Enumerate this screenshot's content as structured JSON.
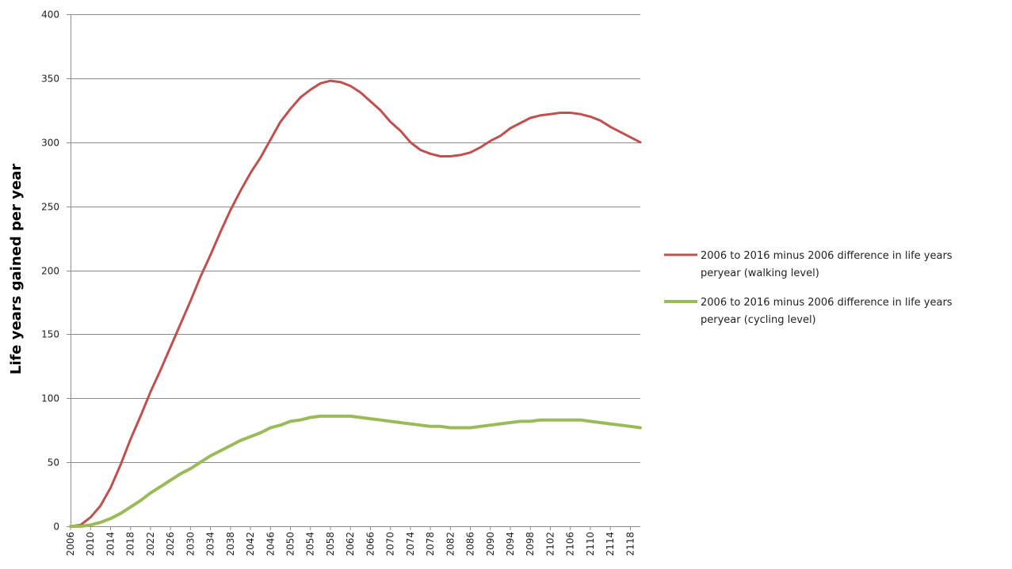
{
  "chart_data": {
    "type": "line",
    "ylabel": "Life years gained per year",
    "ylim": [
      0,
      400
    ],
    "yticks": [
      0,
      50,
      100,
      150,
      200,
      250,
      300,
      350,
      400
    ],
    "xlim": [
      2006,
      2120
    ],
    "xticks": [
      2006,
      2010,
      2014,
      2018,
      2022,
      2026,
      2030,
      2034,
      2038,
      2042,
      2046,
      2050,
      2054,
      2058,
      2062,
      2066,
      2070,
      2074,
      2078,
      2082,
      2086,
      2090,
      2094,
      2098,
      2102,
      2106,
      2110,
      2114,
      2118
    ],
    "grid": true,
    "legend_position": "right",
    "series": [
      {
        "name": "2006 to 2016 minus 2006 difference in life years peryear (walking level)",
        "legend_lines": [
          "2006 to 2016 minus 2006 difference in life years",
          "peryear (walking level)"
        ],
        "color": "#c0504d",
        "x": [
          2006,
          2008,
          2010,
          2012,
          2014,
          2016,
          2018,
          2020,
          2022,
          2024,
          2026,
          2028,
          2030,
          2032,
          2034,
          2036,
          2038,
          2040,
          2042,
          2044,
          2046,
          2048,
          2050,
          2052,
          2054,
          2056,
          2058,
          2060,
          2062,
          2064,
          2066,
          2068,
          2070,
          2072,
          2074,
          2076,
          2078,
          2080,
          2082,
          2084,
          2086,
          2088,
          2090,
          2092,
          2094,
          2096,
          2098,
          2100,
          2102,
          2104,
          2106,
          2108,
          2110,
          2112,
          2114,
          2116,
          2118,
          2120
        ],
        "values": [
          0,
          1,
          7,
          16,
          30,
          48,
          68,
          86,
          105,
          122,
          140,
          158,
          176,
          195,
          212,
          230,
          247,
          262,
          276,
          288,
          302,
          316,
          326,
          335,
          341,
          346,
          348,
          347,
          344,
          339,
          332,
          325,
          316,
          309,
          300,
          294,
          291,
          289,
          289,
          290,
          292,
          296,
          301,
          305,
          311,
          315,
          319,
          321,
          322,
          323,
          323,
          322,
          320,
          317,
          312,
          308,
          304,
          300
        ],
        "line_width": 3
      },
      {
        "name": "2006 to 2016 minus 2006 difference in life years peryear (cycling level)",
        "legend_lines": [
          "2006 to 2016 minus 2006 difference in life years",
          "peryear (cycling level)"
        ],
        "color": "#9bbb59",
        "x": [
          2006,
          2008,
          2010,
          2012,
          2014,
          2016,
          2018,
          2020,
          2022,
          2024,
          2026,
          2028,
          2030,
          2032,
          2034,
          2036,
          2038,
          2040,
          2042,
          2044,
          2046,
          2048,
          2050,
          2052,
          2054,
          2056,
          2058,
          2060,
          2062,
          2064,
          2066,
          2068,
          2070,
          2072,
          2074,
          2076,
          2078,
          2080,
          2082,
          2084,
          2086,
          2088,
          2090,
          2092,
          2094,
          2096,
          2098,
          2100,
          2102,
          2104,
          2106,
          2108,
          2110,
          2112,
          2114,
          2116,
          2118,
          2120
        ],
        "values": [
          0,
          0,
          1,
          3,
          6,
          10,
          15,
          20,
          26,
          31,
          36,
          41,
          45,
          50,
          55,
          59,
          63,
          67,
          70,
          73,
          77,
          79,
          82,
          83,
          85,
          86,
          86,
          86,
          86,
          85,
          84,
          83,
          82,
          81,
          80,
          79,
          78,
          78,
          77,
          77,
          77,
          78,
          79,
          80,
          81,
          82,
          82,
          83,
          83,
          83,
          83,
          83,
          82,
          81,
          80,
          79,
          78,
          77
        ],
        "line_width": 4
      }
    ]
  }
}
